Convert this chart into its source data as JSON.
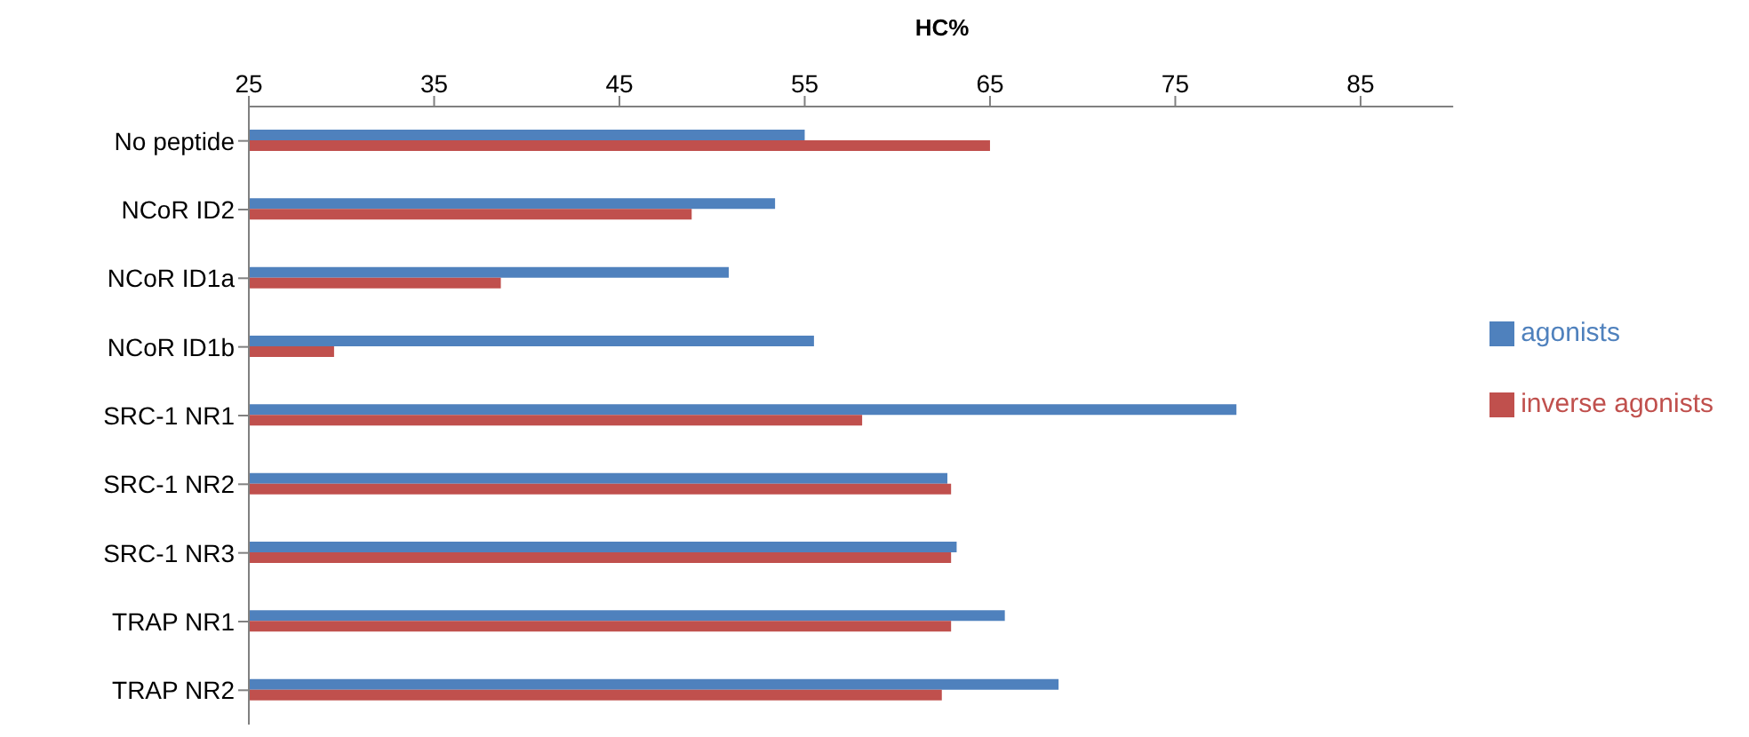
{
  "chart_data": {
    "type": "bar",
    "orientation": "horizontal",
    "xlabel": "HC%",
    "categories": [
      "No peptide",
      "NCoR ID2",
      "NCoR ID1a",
      "NCoR ID1b",
      "SRC-1 NR1",
      "SRC-1 NR2",
      "SRC-1 NR3",
      "TRAP NR1",
      "TRAP NR2"
    ],
    "series": [
      {
        "name": "agonists",
        "color": "#4f81bd",
        "values": [
          55.0,
          53.4,
          50.9,
          55.5,
          78.3,
          62.7,
          63.2,
          65.8,
          68.7
        ]
      },
      {
        "name": "inverse agonists",
        "color": "#c0504d",
        "values": [
          65.0,
          48.9,
          38.6,
          29.6,
          58.1,
          62.9,
          62.9,
          62.9,
          62.4
        ]
      }
    ],
    "xlim": [
      25,
      90
    ],
    "xticks": [
      25,
      35,
      45,
      55,
      65,
      75,
      85
    ],
    "grid": false,
    "legend": "right"
  }
}
